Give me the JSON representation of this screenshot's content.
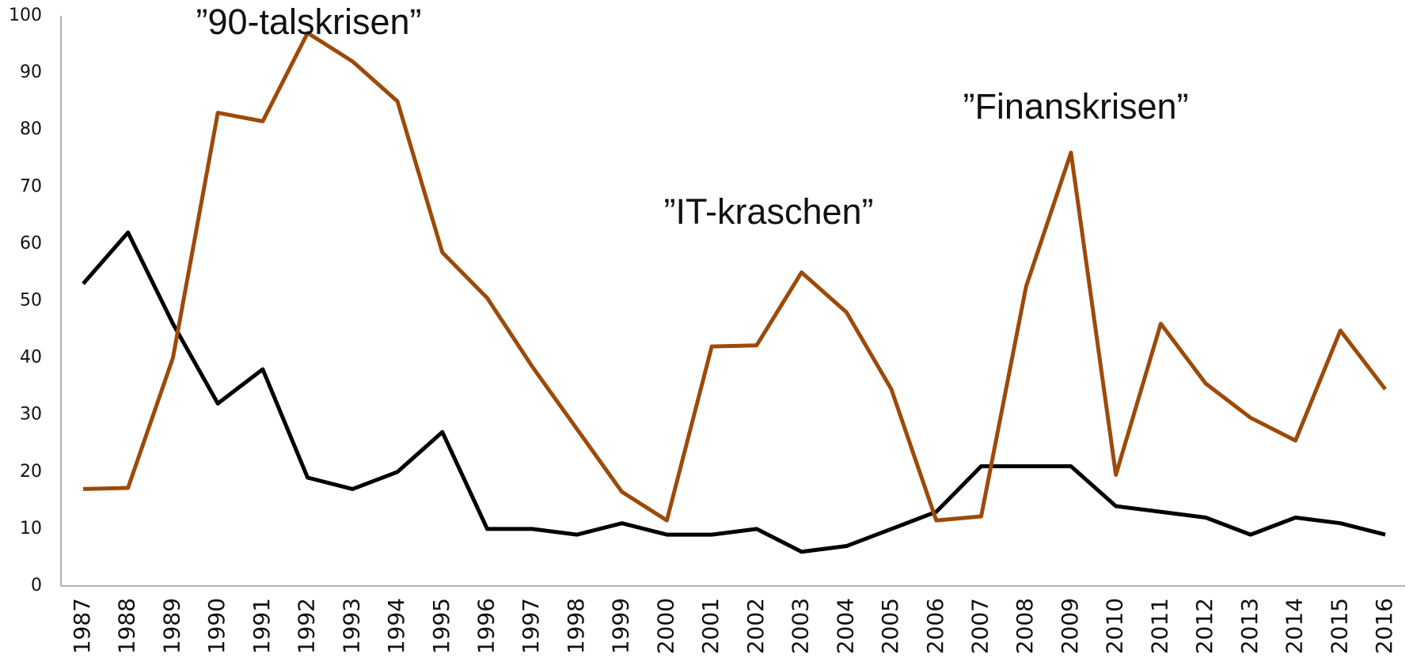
{
  "chart_data": {
    "type": "line",
    "categories": [
      "1987",
      "1988",
      "1989",
      "1990",
      "1991",
      "1992",
      "1993",
      "1994",
      "1995",
      "1996",
      "1997",
      "1998",
      "1999",
      "2000",
      "2001",
      "2002",
      "2003",
      "2004",
      "2005",
      "2006",
      "2007",
      "2008",
      "2009",
      "2010",
      "2011",
      "2012",
      "2013",
      "2014",
      "2015",
      "2016"
    ],
    "series": [
      {
        "color": "#000000",
        "values": [
          53,
          62,
          46,
          32,
          38,
          19,
          17,
          20,
          27,
          10,
          10,
          9,
          11,
          9,
          9,
          10,
          6,
          7,
          10,
          13,
          21,
          21,
          21,
          14,
          13,
          12,
          9,
          12,
          11,
          9
        ]
      },
      {
        "color": "#9c4a0a",
        "values": [
          17,
          17.2,
          40,
          83,
          81.5,
          97,
          92,
          85,
          58.5,
          50.5,
          38.5,
          27.5,
          16.5,
          11.5,
          42,
          42.2,
          55,
          48,
          34.5,
          11.5,
          12.2,
          52.5,
          76,
          19.5,
          46,
          35.5,
          29.5,
          25.5,
          44.8,
          34.5
        ]
      }
    ],
    "annotations": [
      "”90-talskrisen”",
      "”IT-kraschen”",
      "”Finanskrisen”"
    ],
    "ylim": [
      0,
      100
    ],
    "yticks": [
      0,
      10,
      20,
      30,
      40,
      50,
      60,
      70,
      80,
      90,
      100
    ],
    "grid": false
  }
}
